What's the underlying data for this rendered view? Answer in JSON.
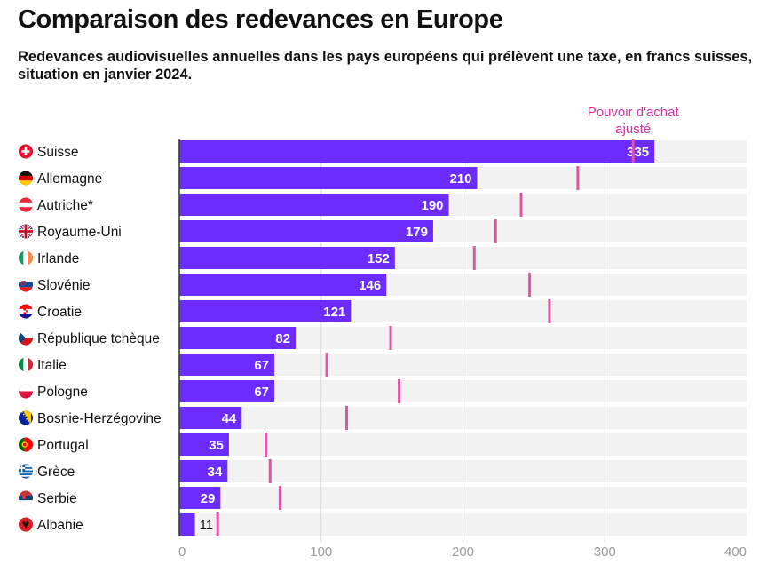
{
  "title": "Comparaison des redevances en Europe",
  "subtitle": "Redevances audiovisuelles annuelles dans les pays européens qui prélèvent une taxe, en francs suisses, situation en janvier 2024.",
  "colors": {
    "bar": "#6c2cff",
    "track": "#f2f2f2",
    "marker": "#e0559f",
    "marker_label": "#d62ea0",
    "grid": "#d8d8d8",
    "tick": "#9a9a9a"
  },
  "chart_data": {
    "type": "bar",
    "orientation": "horizontal",
    "title": "Comparaison des redevances en Europe",
    "subtitle": "Redevances audiovisuelles annuelles dans les pays européens qui prélèvent une taxe, en francs suisses, situation en janvier 2024.",
    "xlim": [
      0,
      400
    ],
    "xticks": [
      0,
      100,
      200,
      300,
      400
    ],
    "grid": true,
    "marker_label": "Pouvoir d'achat ajusté",
    "categories": [
      "Suisse",
      "Allemagne",
      "Autriche*",
      "Royaume-Uni",
      "Irlande",
      "Slovénie",
      "Croatie",
      "République tchèque",
      "Italie",
      "Pologne",
      "Bosnie-Herzégovine",
      "Portugal",
      "Grèce",
      "Serbie",
      "Albanie"
    ],
    "flags": [
      "ch",
      "de",
      "at",
      "gb",
      "ie",
      "si",
      "hr",
      "cz",
      "it",
      "pl",
      "ba",
      "pt",
      "gr",
      "rs",
      "al"
    ],
    "series": [
      {
        "values": [
          335,
          210,
          190,
          179,
          152,
          146,
          121,
          82,
          67,
          67,
          44,
          35,
          34,
          29,
          11
        ]
      },
      {
        "name": "Pouvoir d'achat ajusté",
        "values": [
          320,
          281,
          241,
          223,
          208,
          247,
          261,
          149,
          104,
          155,
          118,
          61,
          64,
          71,
          27
        ]
      }
    ]
  }
}
